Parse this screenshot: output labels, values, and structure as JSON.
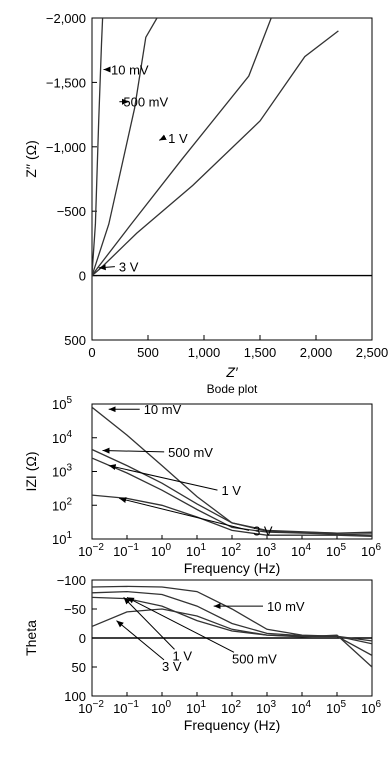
{
  "chart_data": [
    {
      "type": "line",
      "title": "",
      "xlabel": "Z′",
      "ylabel": "Z′′ (Ω)",
      "xlim": [
        0,
        2500
      ],
      "ylim": [
        500,
        -2000
      ],
      "x_tick_labels": [
        "0",
        "500",
        "1,000",
        "1,500",
        "2,000",
        "2,500"
      ],
      "y_tick_labels": [
        "−2,000",
        "−1,500",
        "−1,000",
        "−500",
        "0",
        "500"
      ],
      "series": [
        {
          "name": "10 mV",
          "points": [
            [
              0,
              0
            ],
            [
              5,
              -80
            ],
            [
              30,
              -400
            ],
            [
              60,
              -1200
            ],
            [
              85,
              -1800
            ],
            [
              95,
              -2000
            ]
          ]
        },
        {
          "name": "500 mV",
          "points": [
            [
              0,
              0
            ],
            [
              30,
              -80
            ],
            [
              150,
              -400
            ],
            [
              380,
              -1300
            ],
            [
              480,
              -1850
            ],
            [
              580,
              -2000
            ]
          ]
        },
        {
          "name": "1 V",
          "points": [
            [
              0,
              0
            ],
            [
              50,
              -60
            ],
            [
              350,
              -400
            ],
            [
              800,
              -900
            ],
            [
              1400,
              -1550
            ],
            [
              1600,
              -2000
            ]
          ]
        },
        {
          "name": "3 V",
          "points": [
            [
              0,
              0
            ],
            [
              80,
              -60
            ],
            [
              400,
              -330
            ],
            [
              900,
              -700
            ],
            [
              1500,
              -1200
            ],
            [
              1900,
              -1700
            ],
            [
              2200,
              -1900
            ]
          ]
        }
      ],
      "annotations": [
        {
          "text": "10 mV",
          "x": 170,
          "y": -1600
        },
        {
          "text": "500 mV",
          "x": 280,
          "y": -1350
        },
        {
          "text": "1 V",
          "x": 680,
          "y": -1070
        },
        {
          "text": "3 V",
          "x": 240,
          "y": -70
        }
      ]
    },
    {
      "type": "line",
      "title": "Bode plot",
      "xlabel": "Frequency (Hz)",
      "ylabel": "IZI (Ω)",
      "xscale": "log",
      "yscale": "log",
      "xlim": [
        0.01,
        1000000
      ],
      "ylim": [
        10,
        100000
      ],
      "x_tick_labels": [
        {
          "b": "10",
          "e": "−2"
        },
        {
          "b": "10",
          "e": "−1"
        },
        {
          "b": "10",
          "e": "0"
        },
        {
          "b": "10",
          "e": "1"
        },
        {
          "b": "10",
          "e": "2"
        },
        {
          "b": "10",
          "e": "3"
        },
        {
          "b": "10",
          "e": "4"
        },
        {
          "b": "10",
          "e": "5"
        },
        {
          "b": "10",
          "e": "6"
        }
      ],
      "y_tick_labels": [
        {
          "b": "10",
          "e": "5"
        },
        {
          "b": "10",
          "e": "4"
        },
        {
          "b": "10",
          "e": "3"
        },
        {
          "b": "10",
          "e": "2"
        },
        {
          "b": "10",
          "e": "1"
        }
      ],
      "series": [
        {
          "name": "10 mV",
          "points": [
            [
              0.01,
              80000
            ],
            [
              0.1,
              12000
            ],
            [
              1,
              1500
            ],
            [
              10,
              180
            ],
            [
              100,
              30
            ],
            [
              1000,
              18
            ],
            [
              100000,
              15
            ],
            [
              1000000,
              15
            ]
          ]
        },
        {
          "name": "500 mV",
          "points": [
            [
              0.01,
              4500
            ],
            [
              0.1,
              1500
            ],
            [
              1,
              450
            ],
            [
              10,
              110
            ],
            [
              100,
              30
            ],
            [
              1000,
              17
            ],
            [
              100000,
              15
            ],
            [
              1000000,
              16
            ]
          ]
        },
        {
          "name": "1 V",
          "points": [
            [
              0.01,
              2500
            ],
            [
              0.1,
              900
            ],
            [
              1,
              280
            ],
            [
              10,
              75
            ],
            [
              100,
              22
            ],
            [
              1000,
              16
            ],
            [
              100000,
              14
            ],
            [
              1000000,
              13
            ]
          ]
        },
        {
          "name": "3 V",
          "points": [
            [
              0.01,
              200
            ],
            [
              0.1,
              160
            ],
            [
              1,
              100
            ],
            [
              10,
              45
            ],
            [
              100,
              18
            ],
            [
              1000,
              13
            ],
            [
              100000,
              13
            ],
            [
              1000000,
              12
            ]
          ]
        }
      ],
      "annotations": [
        {
          "text": "10 mV",
          "x": 0.3,
          "y": 70000
        },
        {
          "text": "500 mV",
          "x": 1.5,
          "y": 3800
        },
        {
          "text": "1 V",
          "x": 50,
          "y": 280
        },
        {
          "text": "3 V",
          "x": 400,
          "y": 18
        }
      ]
    },
    {
      "type": "line",
      "title": "",
      "xlabel": "Frequency (Hz)",
      "ylabel": "Theta",
      "xscale": "log",
      "xlim": [
        0.01,
        1000000
      ],
      "ylim": [
        100,
        -100
      ],
      "x_tick_labels": [
        {
          "b": "10",
          "e": "−2"
        },
        {
          "b": "10",
          "e": "−1"
        },
        {
          "b": "10",
          "e": "0"
        },
        {
          "b": "10",
          "e": "1"
        },
        {
          "b": "10",
          "e": "2"
        },
        {
          "b": "10",
          "e": "3"
        },
        {
          "b": "10",
          "e": "4"
        },
        {
          "b": "10",
          "e": "5"
        },
        {
          "b": "10",
          "e": "6"
        }
      ],
      "y_tick_labels": [
        "−100",
        "−50",
        "0",
        "50",
        "100"
      ],
      "series": [
        {
          "name": "10 mV",
          "points": [
            [
              0.01,
              -88
            ],
            [
              0.1,
              -89
            ],
            [
              1,
              -88
            ],
            [
              10,
              -80
            ],
            [
              100,
              -50
            ],
            [
              1000,
              -15
            ],
            [
              10000,
              -5
            ],
            [
              100000,
              -3
            ],
            [
              1000000,
              5
            ]
          ]
        },
        {
          "name": "500 mV",
          "points": [
            [
              0.01,
              -78
            ],
            [
              0.1,
              -80
            ],
            [
              1,
              -75
            ],
            [
              10,
              -55
            ],
            [
              100,
              -25
            ],
            [
              1000,
              -8
            ],
            [
              10000,
              -4
            ],
            [
              100000,
              -3
            ],
            [
              1000000,
              10
            ]
          ]
        },
        {
          "name": "1 V",
          "points": [
            [
              0.01,
              -70
            ],
            [
              0.1,
              -68
            ],
            [
              1,
              -55
            ],
            [
              10,
              -30
            ],
            [
              100,
              -12
            ],
            [
              1000,
              -5
            ],
            [
              10000,
              -3
            ],
            [
              100000,
              -3
            ],
            [
              1000000,
              30
            ]
          ]
        },
        {
          "name": "3 V",
          "points": [
            [
              0.01,
              -20
            ],
            [
              0.1,
              -45
            ],
            [
              1,
              -50
            ],
            [
              10,
              -38
            ],
            [
              100,
              -15
            ],
            [
              1000,
              -5
            ],
            [
              10000,
              -2
            ],
            [
              100000,
              -5
            ],
            [
              1000000,
              50
            ]
          ]
        }
      ],
      "annotations": [
        {
          "text": "10 mV",
          "x": 1000,
          "y": -55
        },
        {
          "text": "500 mV",
          "x": 100,
          "y": 35
        },
        {
          "text": "1 V",
          "x": 2,
          "y": 30
        },
        {
          "text": "3 V",
          "x": 1,
          "y": 48
        }
      ]
    }
  ]
}
